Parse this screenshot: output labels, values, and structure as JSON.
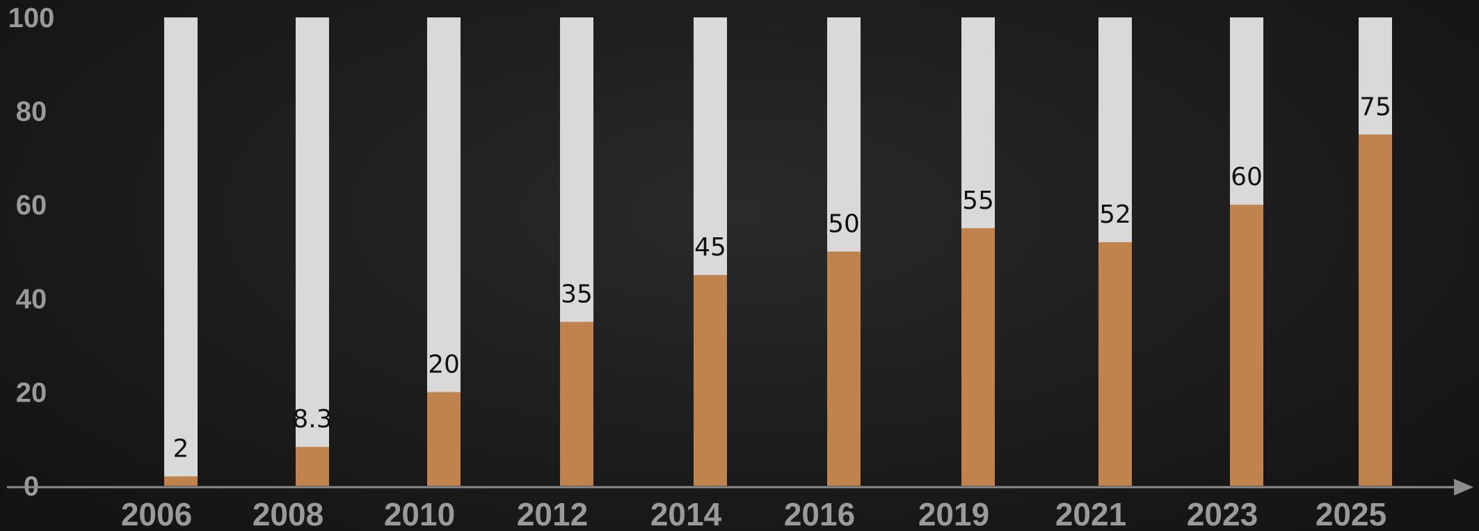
{
  "chart_data": {
    "type": "bar",
    "categories": [
      "2006",
      "2008",
      "2010",
      "2012",
      "2014",
      "2016",
      "2019",
      "2021",
      "2023",
      "2025"
    ],
    "values": [
      2,
      8.3,
      20,
      35,
      45,
      50,
      55,
      52,
      60,
      75
    ],
    "data_labels": [
      "2",
      "8.3",
      "20",
      "35",
      "45",
      "50",
      "55",
      "52",
      "60",
      "75"
    ],
    "ylim": [
      0,
      100
    ],
    "yticks": [
      "0",
      "20",
      "40",
      "60",
      "80",
      "100"
    ],
    "title": "",
    "xlabel": "",
    "ylabel": "",
    "grid": false,
    "colors": {
      "bar_fill": "#c0834d",
      "bar_track": "#d9d9d9",
      "axis": "#8c8c8c",
      "tick_text": "#9a9a9a",
      "data_label_text": "#111111"
    }
  }
}
